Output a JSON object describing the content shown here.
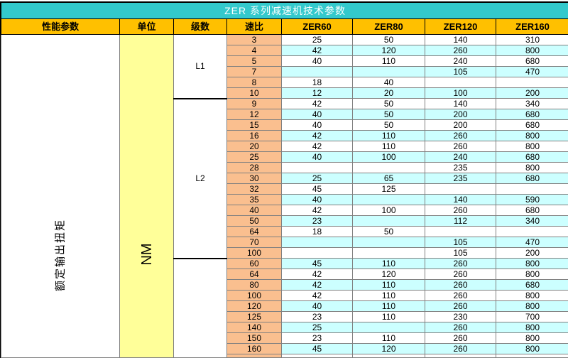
{
  "title": "ZER 系列减速机技术参数",
  "header": {
    "performance": "性能参数",
    "unit": "单位",
    "stages": "级数",
    "ratio": "速比",
    "models": [
      "ZER60",
      "ZER80",
      "ZER120",
      "ZER160"
    ]
  },
  "row_labels": {
    "performance": "额定输出扭矩",
    "unit": "NM"
  },
  "sections": [
    {
      "level": "L1",
      "rows": [
        {
          "ratio": "3",
          "values": [
            "25",
            "50",
            "140",
            "310"
          ]
        },
        {
          "ratio": "4",
          "values": [
            "42",
            "120",
            "260",
            "800"
          ]
        },
        {
          "ratio": "5",
          "values": [
            "40",
            "110",
            "240",
            "680"
          ]
        },
        {
          "ratio": "7",
          "values": [
            "",
            "",
            "105",
            "470"
          ]
        },
        {
          "ratio": "8",
          "values": [
            "18",
            "40",
            "",
            ""
          ]
        },
        {
          "ratio": "10",
          "values": [
            "12",
            "20",
            "100",
            "200"
          ]
        }
      ]
    },
    {
      "level": "L2",
      "rows": [
        {
          "ratio": "9",
          "values": [
            "42",
            "50",
            "140",
            "340"
          ]
        },
        {
          "ratio": "12",
          "values": [
            "40",
            "50",
            "200",
            "680"
          ]
        },
        {
          "ratio": "15",
          "values": [
            "40",
            "50",
            "200",
            "680"
          ]
        },
        {
          "ratio": "16",
          "values": [
            "42",
            "110",
            "260",
            "800"
          ]
        },
        {
          "ratio": "20",
          "values": [
            "42",
            "110",
            "260",
            "800"
          ]
        },
        {
          "ratio": "25",
          "values": [
            "40",
            "100",
            "240",
            "680"
          ]
        },
        {
          "ratio": "28",
          "values": [
            "",
            "",
            "235",
            "800"
          ]
        },
        {
          "ratio": "30",
          "values": [
            "25",
            "65",
            "235",
            "680"
          ]
        },
        {
          "ratio": "32",
          "values": [
            "45",
            "125",
            "",
            ""
          ]
        },
        {
          "ratio": "35",
          "values": [
            "40",
            "",
            "140",
            "590"
          ]
        },
        {
          "ratio": "40",
          "values": [
            "42",
            "100",
            "260",
            "680"
          ]
        },
        {
          "ratio": "50",
          "values": [
            "23",
            "",
            "112",
            "340"
          ]
        },
        {
          "ratio": "64",
          "values": [
            "18",
            "50",
            "",
            ""
          ]
        },
        {
          "ratio": "70",
          "values": [
            "",
            "",
            "105",
            "470"
          ]
        },
        {
          "ratio": "100",
          "values": [
            "",
            "",
            "105",
            "200"
          ]
        }
      ]
    },
    {
      "level": "",
      "rows": [
        {
          "ratio": "60",
          "values": [
            "45",
            "110",
            "260",
            "800"
          ]
        },
        {
          "ratio": "64",
          "values": [
            "42",
            "120",
            "260",
            "800"
          ]
        },
        {
          "ratio": "80",
          "values": [
            "42",
            "110",
            "260",
            "680"
          ]
        },
        {
          "ratio": "100",
          "values": [
            "42",
            "110",
            "260",
            "800"
          ]
        },
        {
          "ratio": "120",
          "values": [
            "40",
            "110",
            "260",
            "800"
          ]
        },
        {
          "ratio": "125",
          "values": [
            "23",
            "110",
            "230",
            "700"
          ]
        },
        {
          "ratio": "140",
          "values": [
            "25",
            "",
            "260",
            "800"
          ]
        },
        {
          "ratio": "150",
          "values": [
            "23",
            "110",
            "260",
            "800"
          ]
        },
        {
          "ratio": "160",
          "values": [
            "45",
            "120",
            "260",
            "800"
          ]
        }
      ]
    }
  ],
  "colors": {
    "title_bg": "#33C9CC",
    "header_bg": "#FFC000",
    "unit_bg": "#FFFF99",
    "ratio_bg": "#FABF8F",
    "stripe_bg": "#CCFFFF"
  }
}
